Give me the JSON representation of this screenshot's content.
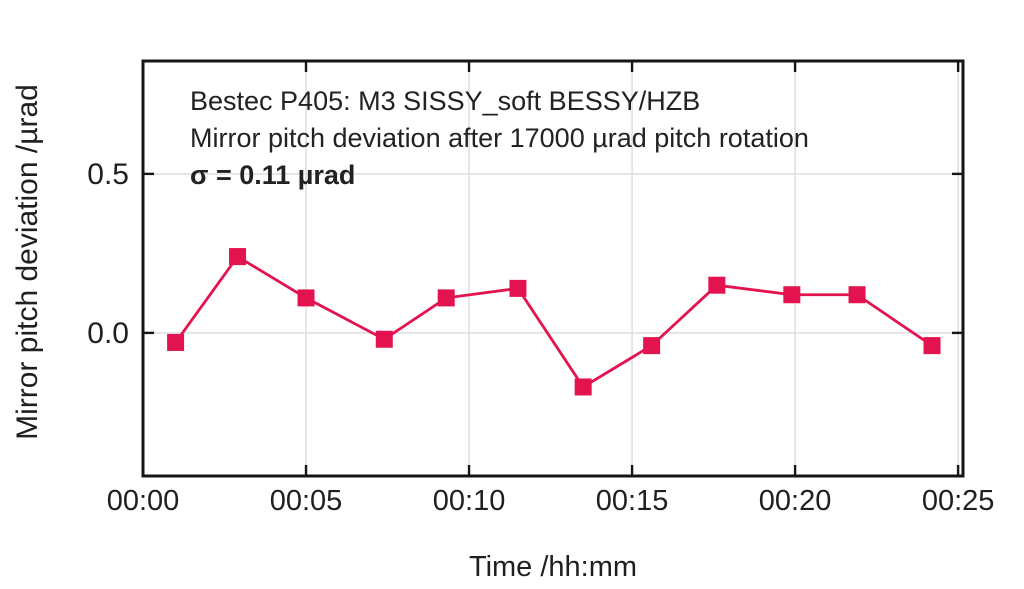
{
  "annotation": {
    "line1": "Bestec P405: M3 SISSY_soft BESSY/HZB",
    "line2": "Mirror pitch deviation after 17000 µrad pitch rotation",
    "line3": "σ = 0.11 µrad"
  },
  "axes": {
    "xlabel": "Time /hh:mm",
    "ylabel": "Mirror pitch deviation /µrad"
  },
  "chart_data": {
    "type": "line",
    "title": "Bestec P405: M3 SISSY_soft BESSY/HZB",
    "subtitle": "Mirror pitch deviation after 17000 µrad pitch rotation",
    "sigma_annotation": "σ = 0.11 µrad",
    "sigma_urad": 0.11,
    "xlabel": "Time /hh:mm",
    "ylabel": "Mirror pitch deviation /µrad",
    "series": [
      {
        "name": "Mirror pitch deviation",
        "x_minutes": [
          1.0,
          2.9,
          5.0,
          7.4,
          9.3,
          11.5,
          13.5,
          15.6,
          17.6,
          19.9,
          21.9,
          24.2
        ],
        "y_urad": [
          -0.03,
          0.24,
          0.11,
          -0.02,
          0.11,
          0.14,
          -0.17,
          -0.04,
          0.15,
          0.12,
          0.12,
          -0.04
        ]
      }
    ],
    "xlim_minutes": [
      0,
      25.15
    ],
    "ylim_urad": [
      -0.45,
      0.855
    ],
    "xticks_minutes": [
      0,
      5,
      10,
      15,
      20,
      25
    ],
    "xtick_labels": [
      "00:00",
      "00:05",
      "00:10",
      "00:15",
      "00:20",
      "00:25"
    ],
    "yticks_urad": [
      0,
      0.5
    ],
    "ytick_labels": [
      "0.0",
      "0.5"
    ],
    "grid": true,
    "legend": "none",
    "marker": "square",
    "colors": {
      "series": "#e2134e",
      "grid": "#e0e0e0",
      "axis": "#161616",
      "text": "#1f1f1f",
      "background": "#ffffff"
    }
  }
}
